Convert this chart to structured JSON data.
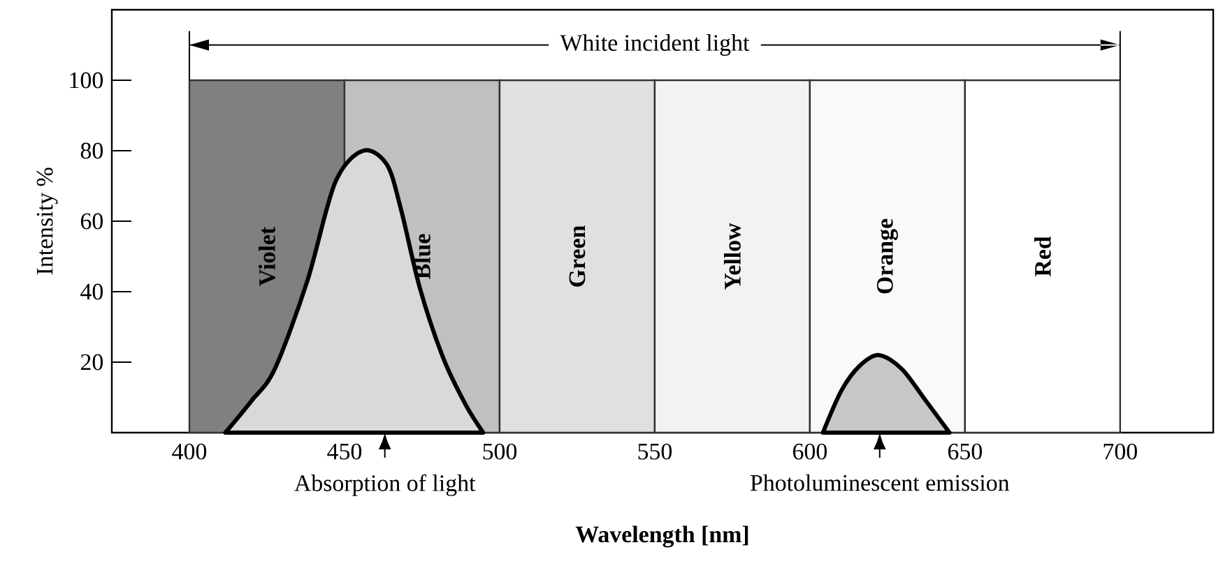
{
  "chart_data": {
    "type": "area",
    "xlabel": "Wavelength [nm]",
    "ylabel": "Intensity %",
    "xlim": [
      375,
      730
    ],
    "ylim": [
      0,
      120
    ],
    "xticks": [
      400,
      450,
      500,
      550,
      600,
      650,
      700
    ],
    "yticks": [
      20,
      40,
      60,
      80,
      100
    ],
    "series": [
      {
        "type": "bar",
        "x": [
          425,
          475,
          525,
          575,
          625,
          675
        ],
        "values": [
          100,
          100,
          100,
          100,
          100,
          100
        ],
        "colors": [
          "#808080",
          "#c0c0c0",
          "#e0e0e0",
          "#f2f2f2",
          "#f9f9f9",
          "#ffffff"
        ],
        "value_labels": [
          "Violet",
          "Blue",
          "Green",
          "Yellow",
          "Orange",
          "Red"
        ]
      },
      {
        "color": "#000000",
        "x": [
          411.6,
          420,
          427.5,
          438,
          447,
          456,
          463.7,
          468.3,
          474.3,
          481.9,
          489,
          494.7
        ],
        "values": [
          0,
          9,
          18,
          43,
          71,
          80,
          76,
          63,
          41,
          21,
          8,
          0
        ]
      },
      {
        "color": "#000000",
        "x": [
          604.2,
          610.2,
          616.1,
          622.3,
          629.7,
          637.4,
          645
        ],
        "values": [
          0,
          12,
          19,
          22,
          18,
          9,
          0
        ]
      }
    ],
    "annotations": [
      "White incident light",
      {
        "text": "Absorption of light",
        "x": 463,
        "y": 0
      },
      {
        "text": "Photoluminescent emission",
        "x": 622.5,
        "y": 0
      }
    ]
  }
}
